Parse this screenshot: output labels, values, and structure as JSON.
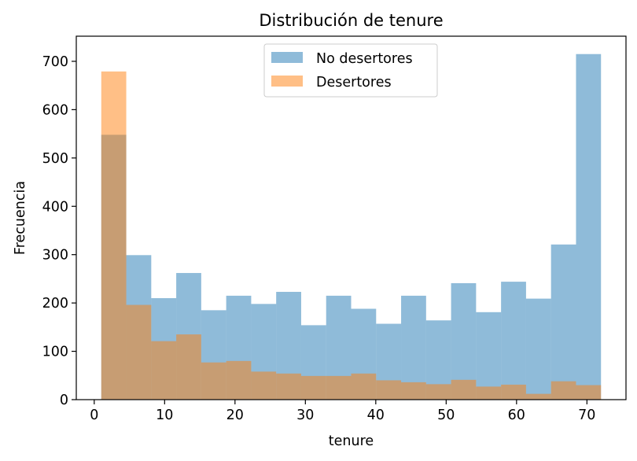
{
  "chart_data": {
    "type": "histogram",
    "title": "Distribución de tenure",
    "xlabel": "tenure",
    "ylabel": "Frecuencia",
    "xlim": [
      -2.55,
      75.55
    ],
    "ylim": [
      0,
      752
    ],
    "xticks": [
      0,
      10,
      20,
      30,
      40,
      50,
      60,
      70
    ],
    "yticks": [
      0,
      100,
      200,
      300,
      400,
      500,
      600,
      700
    ],
    "bin_edges": [
      1,
      4.55,
      8.1,
      11.65,
      15.2,
      18.75,
      22.3,
      25.85,
      29.4,
      32.95,
      36.5,
      40.05,
      43.6,
      47.15,
      50.7,
      54.25,
      57.8,
      61.35,
      64.9,
      68.45,
      72
    ],
    "legend": {
      "position": "upper center"
    },
    "series": [
      {
        "name": "No desertores",
        "color": "#1f77b4",
        "alpha": 0.5,
        "values": [
          548,
          299,
          210,
          262,
          185,
          215,
          198,
          223,
          154,
          215,
          188,
          157,
          215,
          164,
          241,
          181,
          244,
          209,
          321,
          715
        ]
      },
      {
        "name": "Desertores",
        "color": "#ff7f0e",
        "alpha": 0.5,
        "values": [
          679,
          196,
          121,
          135,
          77,
          80,
          58,
          54,
          49,
          49,
          54,
          40,
          36,
          32,
          41,
          27,
          31,
          12,
          38,
          30
        ]
      }
    ]
  }
}
